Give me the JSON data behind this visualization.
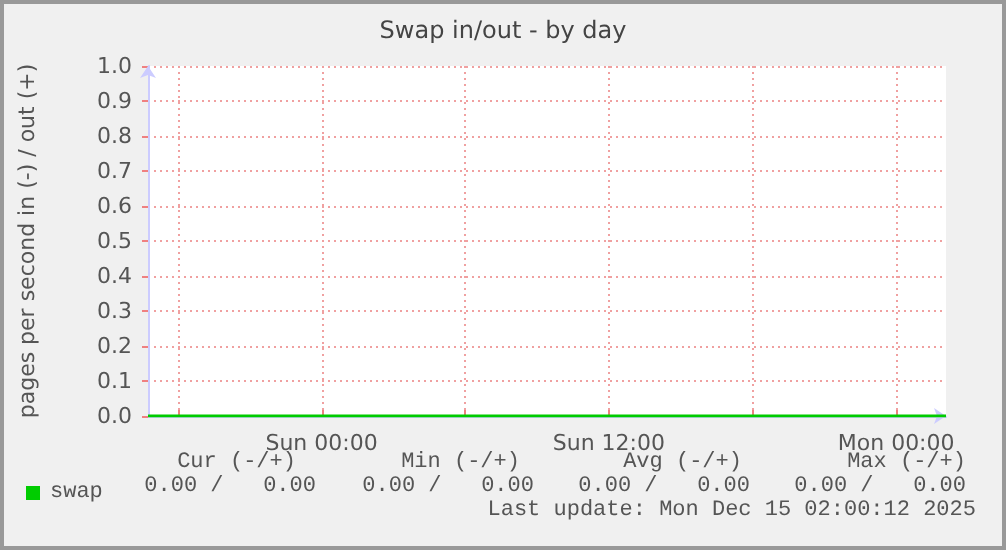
{
  "chart_data": {
    "type": "line",
    "title": "Swap in/out - by day",
    "ylabel": "pages per second in (-) / out (+)",
    "x": [
      "2025-12-13T16:45",
      "2025-12-15T02:05"
    ],
    "series": [
      {
        "name": "swap",
        "color": "#00cc00",
        "values": [
          0,
          0
        ]
      }
    ],
    "xlim": [
      "2025-12-13T16:45",
      "2025-12-15T02:05"
    ],
    "xticks": [
      {
        "value": "2025-12-13T18:00",
        "label": null
      },
      {
        "value": "2025-12-14T00:00",
        "label": "Sun 00:00"
      },
      {
        "value": "2025-12-14T06:00",
        "label": null
      },
      {
        "value": "2025-12-14T12:00",
        "label": "Sun 12:00"
      },
      {
        "value": "2025-12-14T18:00",
        "label": null
      },
      {
        "value": "2025-12-15T00:00",
        "label": "Mon 00:00"
      }
    ],
    "ylim": [
      0,
      1
    ],
    "yticks": [
      {
        "value": 0,
        "label": "0.0"
      },
      {
        "value": 0.1,
        "label": "0.1"
      },
      {
        "value": 0.2,
        "label": "0.2"
      },
      {
        "value": 0.3,
        "label": "0.3"
      },
      {
        "value": 0.4,
        "label": "0.4"
      },
      {
        "value": 0.5,
        "label": "0.5"
      },
      {
        "value": 0.6,
        "label": "0.6"
      },
      {
        "value": 0.7,
        "label": "0.7"
      },
      {
        "value": 0.8,
        "label": "0.8"
      },
      {
        "value": 0.9,
        "label": "0.9"
      },
      {
        "value": 1,
        "label": "1.0"
      }
    ],
    "grid": true,
    "legend": "bottom left",
    "marker": "none",
    "line_style": "solid",
    "annotations": [
      "Cur (-/+)",
      "Min (-/+)",
      "Avg (-/+)",
      "Max (-/+)",
      "0.00 /   0.00",
      "0.00 /   0.00",
      "0.00 /   0.00",
      "0.00 /   0.00",
      "Last update: Mon Dec 15 02:00:12 2025"
    ]
  }
}
